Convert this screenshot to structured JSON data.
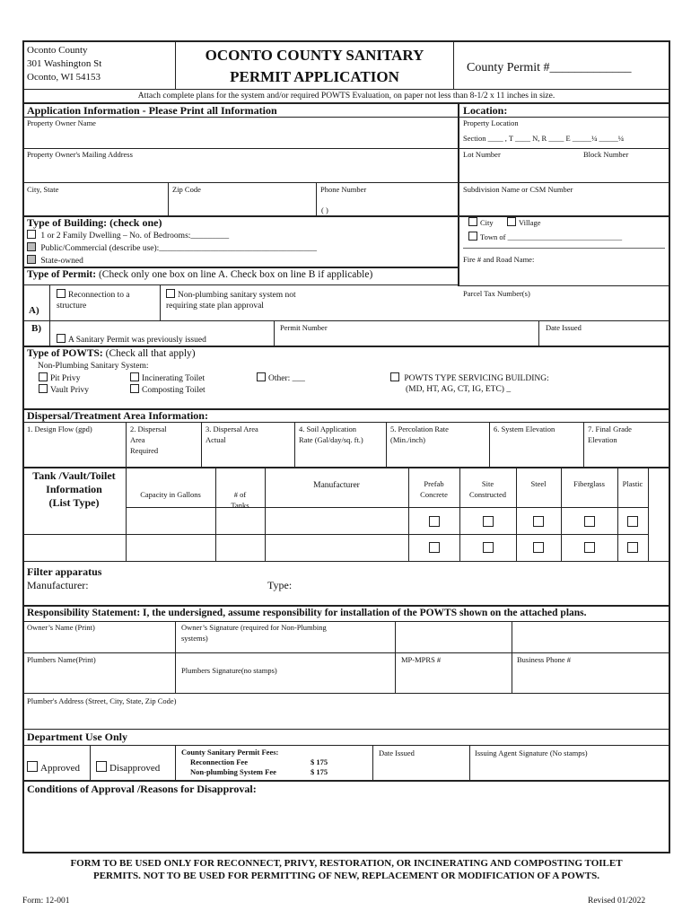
{
  "header": {
    "address": [
      "Oconto County",
      "301 Washington St",
      "Oconto, WI 54153"
    ],
    "title_line1": "OCONTO COUNTY SANITARY",
    "title_line2": "PERMIT APPLICATION",
    "county_permit": "County Permit #_____________"
  },
  "attach_note": "Attach complete plans for the system and/or required POWTS Evaluation, on paper not less than 8-1/2 x 11 inches in size.",
  "application": {
    "heading": "Application Information - Please Print all Information",
    "owner_name": "Property Owner Name",
    "mailing": "Property Owner's Mailing Address",
    "city_state": "City, State",
    "zip": "Zip Code",
    "phone": "Phone Number",
    "phone_format": "(               )"
  },
  "location": {
    "heading": "Location:",
    "property_location": "Property Location",
    "section": "Section ____ , T ____ N, R ____ E   _____¼ _____¼",
    "lot": "Lot Number",
    "block": "Block Number",
    "subdivision": "Subdivision Name or CSM Number",
    "city": "City",
    "village": "Village",
    "town": "Town of ______________________________",
    "fire": "Fire #  and Road Name:",
    "parcel": "Parcel Tax Number(s)"
  },
  "building": {
    "heading": "Type of Building:",
    "heading_note": "(check one)",
    "options": [
      "1 or 2 Family Dwelling – No. of Bedrooms:_________",
      "Public/Commercial (describe use):_____________________________________",
      "State-owned"
    ]
  },
  "permit": {
    "heading": "Type of Permit:",
    "heading_note": "(Check only one box on line A.  Check box on line B if applicable)",
    "a_label": "A)",
    "a_opt1": [
      "Reconnection to a",
      "structure"
    ],
    "a_opt2": [
      "Non-plumbing sanitary system not",
      "requiring state plan approval"
    ],
    "b_label": "B)",
    "b_opt": "A Sanitary Permit was previously issued",
    "permit_number": "Permit Number",
    "date_issued": "Date Issued"
  },
  "powts": {
    "heading": "Type of POWTS:",
    "heading_note": "(Check all that apply)",
    "sub": "Non-Plumbing Sanitary  System:",
    "pit": "Pit Privy",
    "vault": "Vault Privy",
    "incinerating": "Incinerating Toilet",
    "composting": "Composting Toilet",
    "other": "Other: ___",
    "servicing": "POWTS TYPE SERVICING BUILDING:",
    "servicing2": "(MD, HT, AG, CT, IG, ETC) _"
  },
  "dispersal": {
    "heading": "Dispersal/Treatment Area Information:",
    "cols": [
      [
        "1. Design Flow (gpd)"
      ],
      [
        "2. Dispersal",
        "Area",
        "Required"
      ],
      [
        "3. Dispersal Area",
        "Actual"
      ],
      [
        "4. Soil Application",
        "Rate (Gal/day/sq. ft.)"
      ],
      [
        "5. Percolation Rate",
        "(Min./inch)"
      ],
      [
        "6. System Elevation"
      ],
      [
        "7. Final Grade",
        "Elevation"
      ]
    ]
  },
  "tank": {
    "heading": [
      "Tank /Vault/Toilet",
      "Information",
      "(List Type)"
    ],
    "capacity": "Capacity in Gallons",
    "tanks": [
      "# of",
      "Tanks"
    ],
    "manufacturer": "Manufacturer",
    "materials": [
      [
        "Prefab",
        "Concrete"
      ],
      [
        "Site",
        "Constructed"
      ],
      [
        "Steel"
      ],
      [
        "Fiberglass"
      ],
      [
        "Plastic"
      ]
    ]
  },
  "filter": {
    "heading": "Filter apparatus",
    "manufacturer": "Manufacturer:",
    "type": "Type:"
  },
  "responsibility": {
    "statement": "Responsibility Statement: I, the undersigned, assume responsibility for installation of the POWTS shown on the attached plans.",
    "owner_name": "Owner’s Name (Print)",
    "owner_sig": [
      "Owner’s Signature  (required for Non-Plumbing",
      "systems)"
    ],
    "plumber_name": "Plumbers Name(Print)",
    "plumber_sig": "Plumbers Signature(no stamps)",
    "mpmprs": "MP-MPRS #",
    "business_phone": "Business Phone #",
    "plumber_address": "Plumber's Address (Street, City, State, Zip Code)"
  },
  "department": {
    "heading": "Department Use Only",
    "approved": "Approved",
    "disapproved": "Disapproved",
    "fees_heading": "County Sanitary Permit Fees:",
    "reconnect_fee_label": "Reconnection Fee",
    "reconnect_fee": "$ 175",
    "nonplumb_fee_label": "Non-plumbing System Fee",
    "nonplumb_fee": "$ 175",
    "date_issued": "Date Issued",
    "agent_sig": "Issuing Agent Signature (No stamps)"
  },
  "conditions": "Conditions of Approval /Reasons for Disapproval:",
  "footer": {
    "notice1": "FORM TO BE USED ONLY FOR RECONNECT, PRIVY, RESTORATION, OR INCINERATING AND COMPOSTING TOILET",
    "notice2": "PERMITS.  NOT TO BE USED FOR PERMITTING OF NEW, REPLACEMENT OR MODIFICATION OF A POWTS.",
    "form": "Form: 12-001",
    "revised": "Revised 01/2022"
  }
}
